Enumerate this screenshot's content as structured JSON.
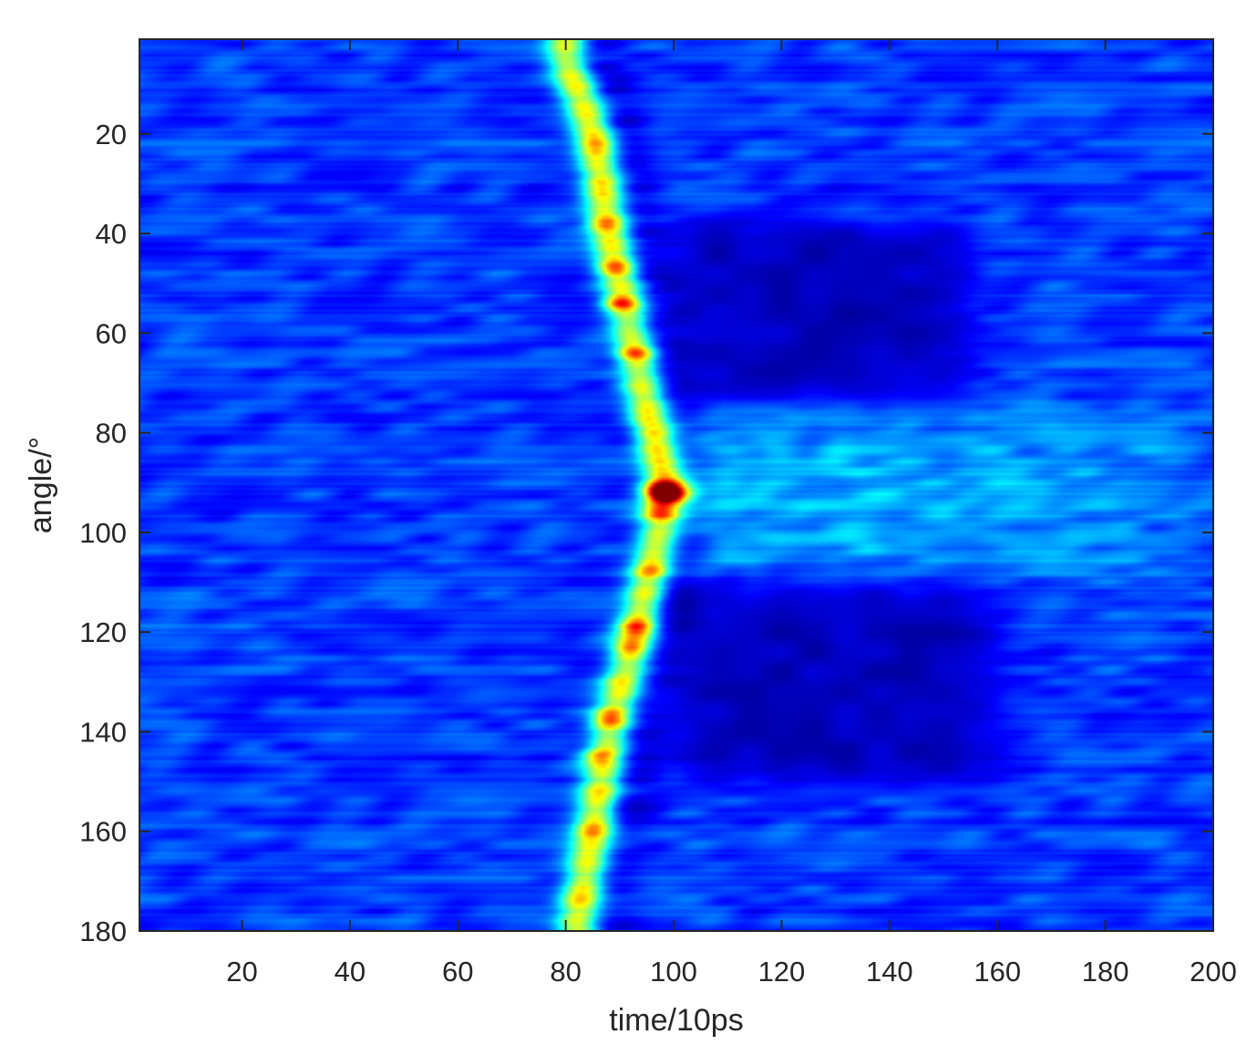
{
  "chart_data": {
    "type": "heatmap",
    "title": "",
    "xlabel": "time/10ps",
    "ylabel": "angle/°",
    "xlim": [
      1,
      200
    ],
    "ylim": [
      1,
      180
    ],
    "y_reversed": true,
    "grid": false,
    "colormap": "jet",
    "x_ticks": [
      20,
      40,
      60,
      80,
      100,
      120,
      140,
      160,
      180,
      200
    ],
    "y_ticks": [
      20,
      40,
      60,
      80,
      100,
      120,
      140,
      160,
      180
    ],
    "background_level": 0.18,
    "ridge": {
      "description": "bright V-shaped front, time of arrival vs angle",
      "points": [
        {
          "angle": 5,
          "time": 80
        },
        {
          "angle": 20,
          "time": 85
        },
        {
          "angle": 40,
          "time": 88
        },
        {
          "angle": 60,
          "time": 92
        },
        {
          "angle": 80,
          "time": 96
        },
        {
          "angle": 92,
          "time": 99
        },
        {
          "angle": 100,
          "time": 97
        },
        {
          "angle": 120,
          "time": 93
        },
        {
          "angle": 140,
          "time": 88
        },
        {
          "angle": 160,
          "time": 85
        },
        {
          "angle": 178,
          "time": 82
        }
      ],
      "peak": {
        "angle": 92,
        "time": 98,
        "level": 1.0
      }
    },
    "hotspots": [
      {
        "angle": 22,
        "time": 86,
        "level": 0.72
      },
      {
        "angle": 38,
        "time": 87,
        "level": 0.72
      },
      {
        "angle": 47,
        "time": 89,
        "level": 0.78
      },
      {
        "angle": 54,
        "time": 90,
        "level": 0.82
      },
      {
        "angle": 64,
        "time": 93,
        "level": 0.78
      },
      {
        "angle": 92,
        "time": 98,
        "level": 1.0
      },
      {
        "angle": 96,
        "time": 97,
        "level": 0.74
      },
      {
        "angle": 107,
        "time": 96,
        "level": 0.68
      },
      {
        "angle": 119,
        "time": 93,
        "level": 0.8
      },
      {
        "angle": 123,
        "time": 92,
        "level": 0.72
      },
      {
        "angle": 137,
        "time": 88,
        "level": 0.8
      },
      {
        "angle": 145,
        "time": 86,
        "level": 0.74
      },
      {
        "angle": 160,
        "time": 85,
        "level": 0.64
      }
    ],
    "dark_regions": [
      {
        "time_range": [
          100,
          155
        ],
        "angle_range": [
          38,
          74
        ],
        "level": 0.06
      },
      {
        "time_range": [
          100,
          160
        ],
        "angle_range": [
          110,
          150
        ],
        "level": 0.06
      }
    ],
    "wake_band": {
      "time_range": [
        100,
        200
      ],
      "angle_range": [
        76,
        108
      ],
      "level": 0.32
    }
  }
}
